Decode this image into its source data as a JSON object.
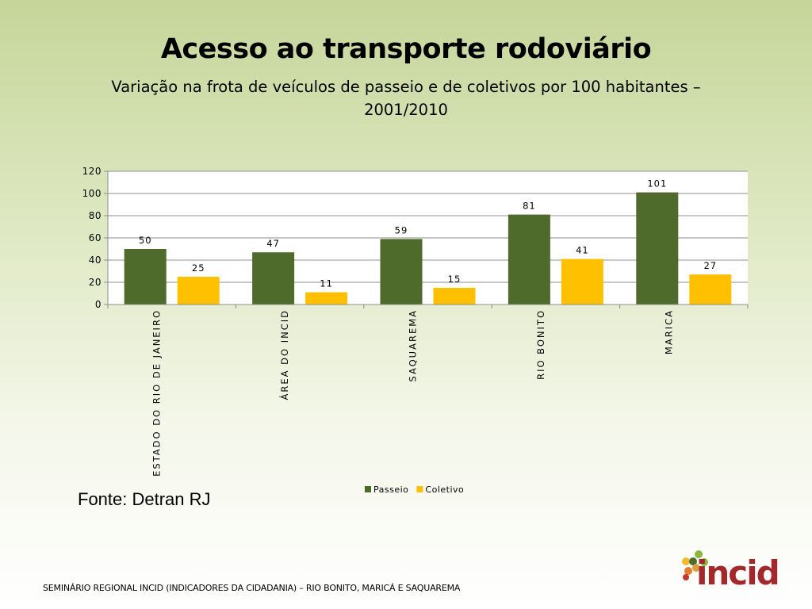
{
  "slide": {
    "title": "Acesso ao transporte rodoviário",
    "subtitle": "Variação na frota de veículos de passeio e de coletivos por 100 habitantes – 2001/2010",
    "source": "Fonte: Detran RJ",
    "footer": "SEMINÁRIO REGIONAL INCID (INDICADORES DA CIDADANIA) – RIO BONITO, MARICÁ E SAQUAREMA",
    "logo_text": "incid"
  },
  "chart_data": {
    "type": "bar",
    "categories": [
      "ESTADO DO RIO DE JANEIRO",
      "ÁREA DO INCID",
      "SAQUAREMA",
      "RIO BONITO",
      "MARICA"
    ],
    "series": [
      {
        "name": "Passeio",
        "values": [
          50,
          47,
          59,
          81,
          101
        ],
        "color": "#4f6b2c"
      },
      {
        "name": "Coletivo",
        "values": [
          25,
          11,
          15,
          41,
          27
        ],
        "color": "#ffc000"
      }
    ],
    "ylim": [
      0,
      120
    ],
    "yticks": [
      0,
      20,
      40,
      60,
      80,
      100,
      120
    ],
    "grid": true,
    "legend_position": "bottom"
  },
  "colors": {
    "passeio": "#4f6b2c",
    "coletivo": "#ffc000",
    "logo_red": "#a3282b"
  }
}
